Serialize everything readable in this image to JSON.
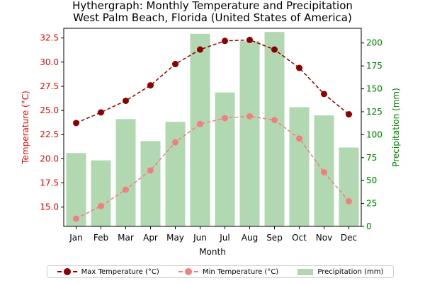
{
  "title_line1": "Hythergraph: Monthly Temperature and Precipitation",
  "title_line2": "West Palm Beach, Florida (United States of America)",
  "chart_data": {
    "type": "bar+line",
    "categories": [
      "Jan",
      "Feb",
      "Mar",
      "Apr",
      "May",
      "Jun",
      "Jul",
      "Aug",
      "Sep",
      "Oct",
      "Nov",
      "Dec"
    ],
    "series": [
      {
        "name": "Max Temperature (°C)",
        "type": "line",
        "axis": "left",
        "color": "#8b0000",
        "values": [
          23.7,
          24.8,
          26.0,
          27.6,
          29.8,
          31.3,
          32.2,
          32.3,
          31.3,
          29.4,
          26.7,
          24.6
        ]
      },
      {
        "name": "Min Temperature (°C)",
        "type": "line",
        "axis": "left",
        "color": "#f08080",
        "values": [
          13.8,
          15.1,
          16.8,
          18.8,
          21.7,
          23.6,
          24.2,
          24.4,
          24.0,
          22.1,
          18.6,
          15.6
        ]
      },
      {
        "name": "Precipitation (mm)",
        "type": "bar",
        "axis": "right",
        "color": "#b2d8b2",
        "values": [
          80,
          72,
          117,
          93,
          114,
          210,
          146,
          202,
          212,
          130,
          121,
          86
        ]
      }
    ],
    "xlabel": "Month",
    "ylabel_left": "Temperature (°C)",
    "ylabel_right": "Precipitation (mm)",
    "ylim_left": [
      13.0,
      33.5
    ],
    "ylim_right": [
      0,
      216
    ],
    "yticks_left": [
      "15.0",
      "17.5",
      "20.0",
      "22.5",
      "25.0",
      "27.5",
      "30.0",
      "32.5"
    ],
    "yticks_right": [
      "0",
      "25",
      "50",
      "75",
      "100",
      "125",
      "150",
      "175",
      "200"
    ],
    "left_axis_color": "#ff0000",
    "right_axis_color": "#008000",
    "legend_position": "bottom-center",
    "grid": false
  }
}
